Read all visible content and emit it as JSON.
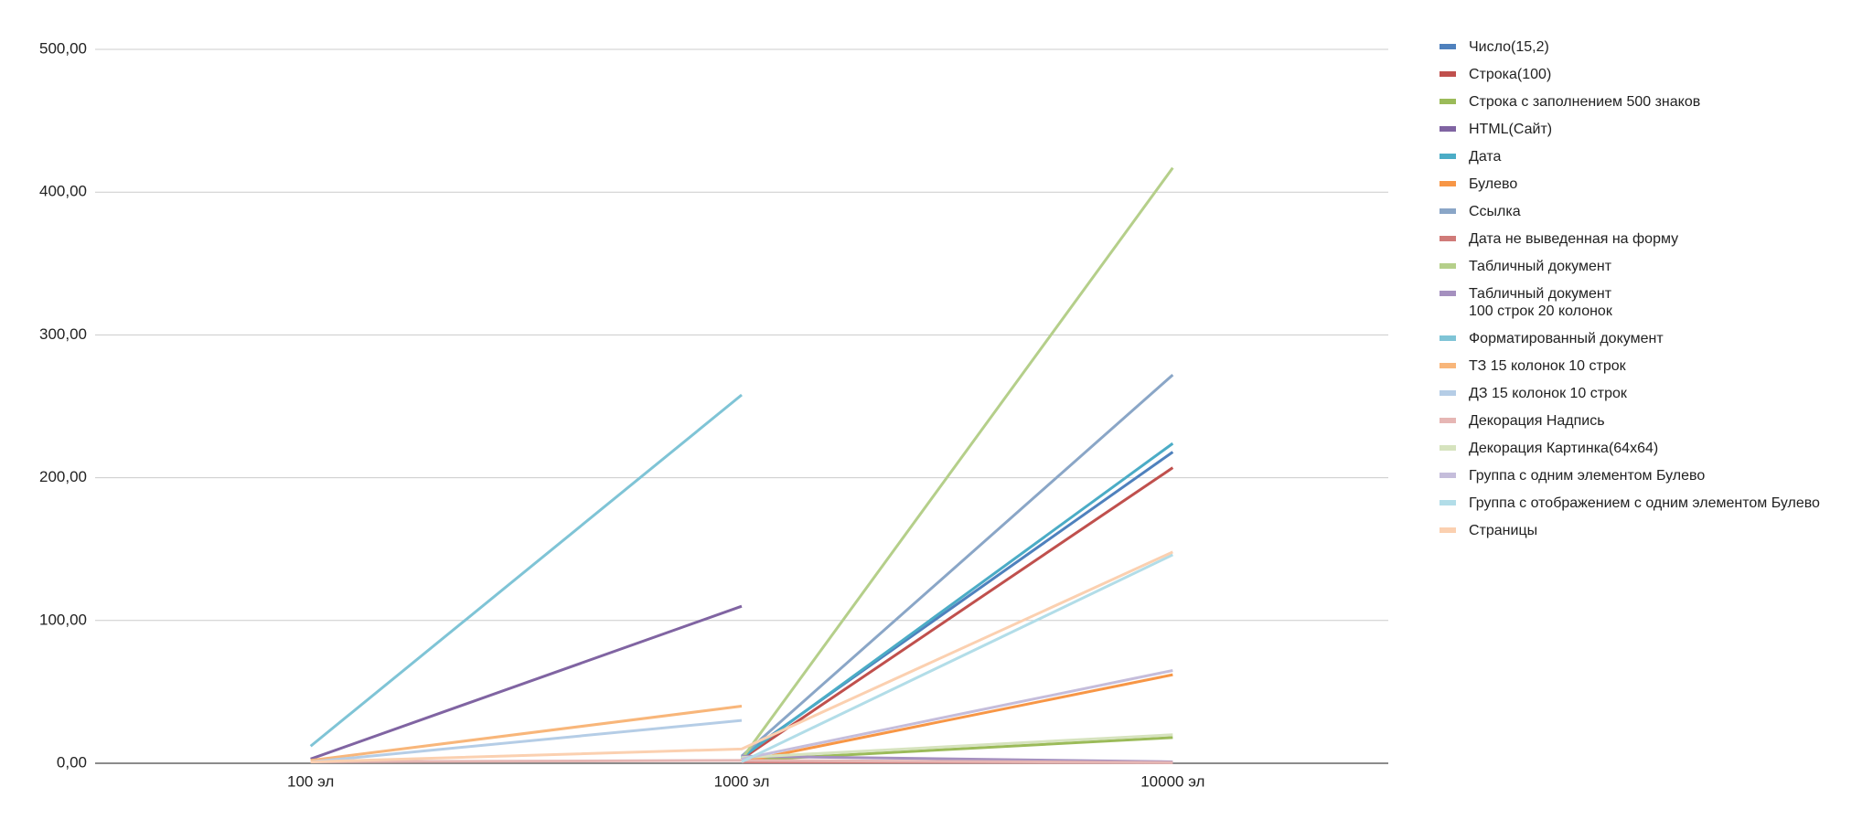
{
  "chart_data": {
    "type": "line",
    "categories": [
      "100 эл",
      "1000 эл",
      "10000 эл"
    ],
    "ylim": [
      0,
      500
    ],
    "yticks": [
      {
        "value": 0,
        "label": "0,00"
      },
      {
        "value": 100,
        "label": "100,00"
      },
      {
        "value": 200,
        "label": "200,00"
      },
      {
        "value": 300,
        "label": "300,00"
      },
      {
        "value": 400,
        "label": "400,00"
      },
      {
        "value": 500,
        "label": "500,00"
      }
    ],
    "grid": true,
    "legend": "right",
    "series": [
      {
        "name": "Число(15,2)",
        "color": "#4f81bd",
        "values": [
          null,
          5,
          218
        ]
      },
      {
        "name": "Строка(100)",
        "color": "#c0504d",
        "values": [
          null,
          3,
          207
        ]
      },
      {
        "name": "Строка с заполнением 500 знаков",
        "color": "#9bbb59",
        "values": [
          null,
          2,
          18
        ]
      },
      {
        "name": "HTML(Сайт)",
        "color": "#8064a2",
        "values": [
          3,
          110,
          null
        ]
      },
      {
        "name": "Дата",
        "color": "#4bacc6",
        "values": [
          null,
          4,
          224
        ]
      },
      {
        "name": "Булево",
        "color": "#f79646",
        "values": [
          null,
          1,
          62
        ]
      },
      {
        "name": "Ссылка",
        "color": "#8aa6c7",
        "values": [
          null,
          5,
          272
        ]
      },
      {
        "name": "Дата не выведенная на форму",
        "color": "#d07b79",
        "values": [
          null,
          1,
          0.5
        ]
      },
      {
        "name": "Табличный документ",
        "color": "#b5cf8a",
        "values": [
          null,
          3,
          417
        ]
      },
      {
        "name": "Табличный документ\n100 строк 20 колонок",
        "color": "#a590bf",
        "values": [
          null,
          5,
          1
        ]
      },
      {
        "name": "Форматированный документ",
        "color": "#7fc4d6",
        "values": [
          12,
          258,
          null
        ]
      },
      {
        "name": "ТЗ 15 колонок 10 строк",
        "color": "#f8b67a",
        "values": [
          2,
          40,
          null
        ]
      },
      {
        "name": "ДЗ 15 колонок 10 строк",
        "color": "#b5cde6",
        "values": [
          1,
          30,
          null
        ]
      },
      {
        "name": "Декорация Надпись",
        "color": "#e6b6b4",
        "values": [
          1,
          2,
          0.5
        ]
      },
      {
        "name": "Декорация Картинка(64x64)",
        "color": "#d6e3be",
        "values": [
          null,
          4,
          20
        ]
      },
      {
        "name": "Группа с одним элементом Булево",
        "color": "#c5bddb",
        "values": [
          null,
          3,
          65
        ]
      },
      {
        "name": "Группа с отображением с одним элементом Булево",
        "color": "#b2dde8",
        "values": [
          null,
          1,
          146
        ]
      },
      {
        "name": "Страницы",
        "color": "#fbd0b0",
        "values": [
          1,
          10,
          148
        ]
      }
    ]
  }
}
